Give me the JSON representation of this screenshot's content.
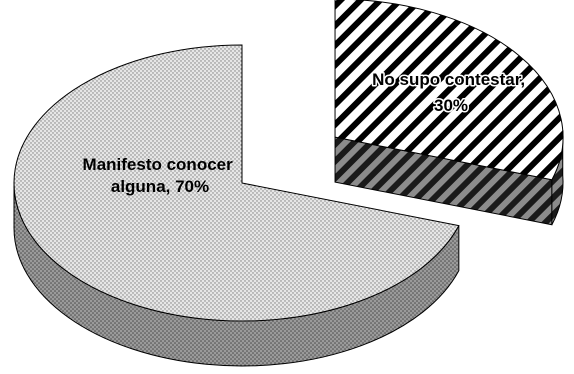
{
  "chart_data": {
    "type": "pie",
    "title": "",
    "categories": [
      "Manifesto conocer alguna",
      "No supo contestar"
    ],
    "values": [
      70,
      30
    ],
    "unit": "%",
    "labels": {
      "slice_0_line1": "Manifesto conocer",
      "slice_0_line2": "alguna, 70%",
      "slice_1_line1": "No supo contestar,",
      "slice_1_line2": "30%"
    },
    "style": "3d-exploded",
    "legend": "none",
    "colors": {
      "slice_0_top": "#e4e4e4",
      "slice_0_side": "#8a8a8a",
      "slice_1_top": "#ffffff",
      "slice_1_side": "#808080",
      "outline": "#000000"
    }
  }
}
